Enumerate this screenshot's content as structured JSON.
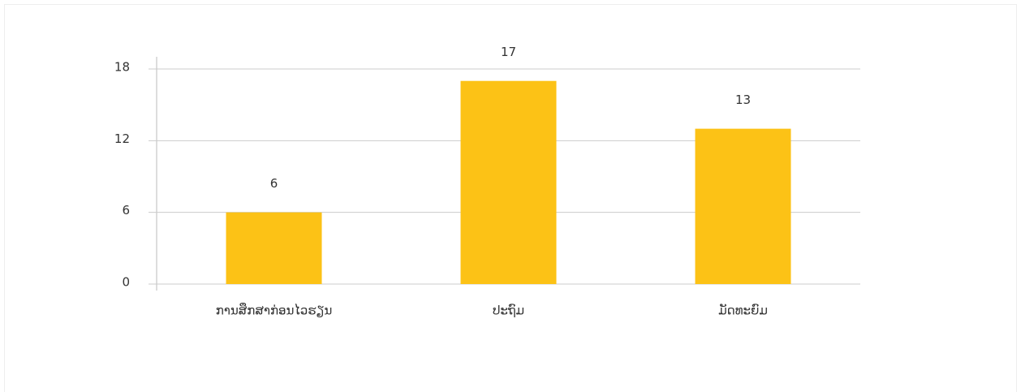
{
  "chart_data": {
    "type": "bar",
    "categories": [
      "ການສຶກສາກ່ອນໄວຮຽນ",
      "ປະຖົມ",
      "ມັດທະຍົມ"
    ],
    "values": [
      6,
      17,
      13
    ],
    "color": "#fcc216",
    "ylim": [
      0,
      18
    ],
    "yticks": [
      0,
      6,
      12,
      18
    ],
    "grid": true
  }
}
